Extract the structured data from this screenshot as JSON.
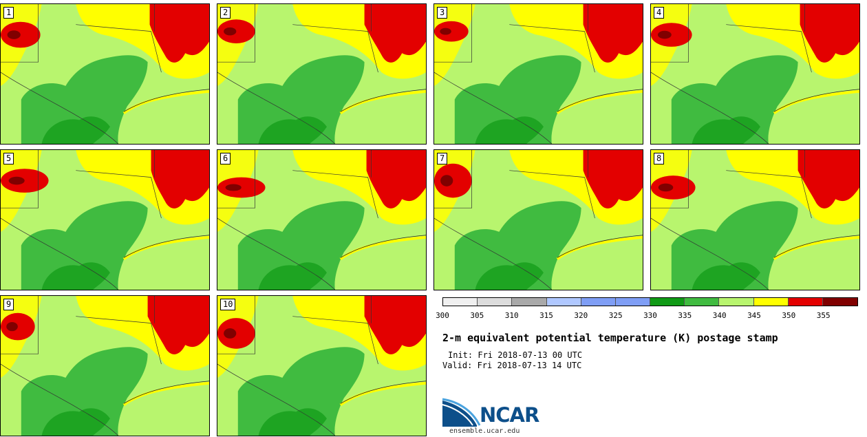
{
  "panels": [
    {
      "label": "1"
    },
    {
      "label": "2"
    },
    {
      "label": "3"
    },
    {
      "label": "4"
    },
    {
      "label": "5"
    },
    {
      "label": "6"
    },
    {
      "label": "7"
    },
    {
      "label": "8"
    },
    {
      "label": "9"
    },
    {
      "label": "10"
    }
  ],
  "colorbar": {
    "ticks": [
      "300",
      "305",
      "310",
      "315",
      "320",
      "325",
      "330",
      "335",
      "340",
      "345",
      "350",
      "355"
    ],
    "colors": [
      "#f0f0f0",
      "#dcdcdc",
      "#a9a9a9",
      "#b0c8ff",
      "#7f9ef5",
      "#7f9ef5",
      "#109a16",
      "#40bb40",
      "#b8f56e",
      "#ffff00",
      "#e30000",
      "#800000"
    ]
  },
  "title": "2-m equivalent potential temperature (K) postage stamp",
  "init_line": "Init: Fri 2018-07-13 00 UTC",
  "valid_line": "Valid: Fri 2018-07-13 14 UTC",
  "logo": {
    "text": "NCAR",
    "url": "ensemble.ucar.edu"
  }
}
